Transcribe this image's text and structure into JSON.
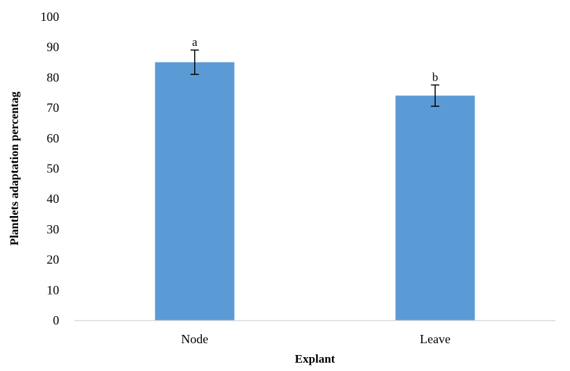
{
  "chart_data": {
    "type": "bar",
    "title": "",
    "xlabel": "Explant",
    "ylabel": "Plantlets adaptation percentag",
    "categories": [
      "Node",
      "Leave"
    ],
    "values": [
      85,
      74
    ],
    "error_bars": [
      {
        "low": 81,
        "high": 89
      },
      {
        "low": 70.5,
        "high": 77.5
      }
    ],
    "significance_labels": [
      "a",
      "b"
    ],
    "ylim": [
      0,
      100
    ],
    "yticks": [
      0,
      10,
      20,
      30,
      40,
      50,
      60,
      70,
      80,
      90,
      100
    ],
    "grid": false,
    "bar_color": "#5b9bd5",
    "axis_color": "#d9d9d9"
  }
}
